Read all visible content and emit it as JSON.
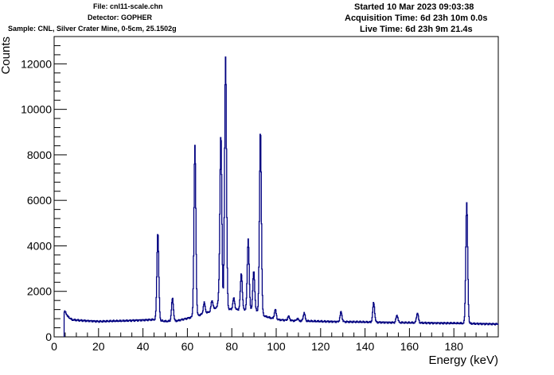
{
  "header": {
    "file": "File: cnl11-scale.chn",
    "detector": "Detector: GOPHER",
    "sample": "Sample: CNL, Silver Crater Mine, 0-5cm, 25.1502g",
    "started": "Started 10 Mar 2023 09:03:38",
    "acquisition": "Acquisition Time: 6d 23h 10m 0.0s",
    "live": "Live Time: 6d 23h 9m 21.4s"
  },
  "chart_data": {
    "type": "line",
    "xlabel": "Energy (keV)",
    "ylabel": "Counts",
    "xlim": [
      0,
      200
    ],
    "ylim": [
      0,
      13200
    ],
    "xticks": [
      0,
      20,
      40,
      60,
      80,
      100,
      120,
      140,
      160,
      180
    ],
    "yticks": [
      0,
      2000,
      4000,
      6000,
      8000,
      10000,
      12000
    ],
    "line_color": "#000080",
    "spectrum_start": 4.5,
    "baseline": [
      [
        4.5,
        1100
      ],
      [
        5,
        1100
      ],
      [
        6,
        900
      ],
      [
        8,
        750
      ],
      [
        12,
        720
      ],
      [
        20,
        680
      ],
      [
        30,
        700
      ],
      [
        40,
        740
      ],
      [
        45,
        760
      ],
      [
        50,
        680
      ],
      [
        55,
        700
      ],
      [
        60,
        820
      ],
      [
        65,
        950
      ],
      [
        70,
        1100
      ],
      [
        73,
        1300
      ],
      [
        80,
        1200
      ],
      [
        85,
        1200
      ],
      [
        90,
        1200
      ],
      [
        95,
        900
      ],
      [
        100,
        760
      ],
      [
        110,
        700
      ],
      [
        120,
        680
      ],
      [
        140,
        650
      ],
      [
        160,
        620
      ],
      [
        180,
        600
      ],
      [
        200,
        560
      ]
    ],
    "peaks": [
      {
        "energy": 16,
        "counts": 150
      },
      {
        "energy": 26,
        "counts": 200
      },
      {
        "energy": 32,
        "counts": 180
      },
      {
        "energy": 40.5,
        "counts": 300
      },
      {
        "energy": 46.6,
        "counts": 4600
      },
      {
        "energy": 53.2,
        "counts": 1700
      },
      {
        "energy": 63.3,
        "counts": 8400
      },
      {
        "energy": 67.5,
        "counts": 1500
      },
      {
        "energy": 71,
        "counts": 1600
      },
      {
        "energy": 74.2,
        "counts": 1800
      },
      {
        "energy": 75.0,
        "counts": 8800
      },
      {
        "energy": 77.1,
        "counts": 12300
      },
      {
        "energy": 80.8,
        "counts": 1700
      },
      {
        "energy": 84.2,
        "counts": 2800
      },
      {
        "energy": 87.3,
        "counts": 4300
      },
      {
        "energy": 89.8,
        "counts": 2900
      },
      {
        "energy": 92.8,
        "counts": 9100
      },
      {
        "energy": 99.5,
        "counts": 1200
      },
      {
        "energy": 105.5,
        "counts": 900
      },
      {
        "energy": 109.5,
        "counts": 800
      },
      {
        "energy": 112.5,
        "counts": 1050
      },
      {
        "energy": 129.1,
        "counts": 1100
      },
      {
        "energy": 143.8,
        "counts": 1500
      },
      {
        "energy": 154.3,
        "counts": 950
      },
      {
        "energy": 163.5,
        "counts": 1050
      },
      {
        "energy": 185.7,
        "counts": 5900
      }
    ]
  }
}
